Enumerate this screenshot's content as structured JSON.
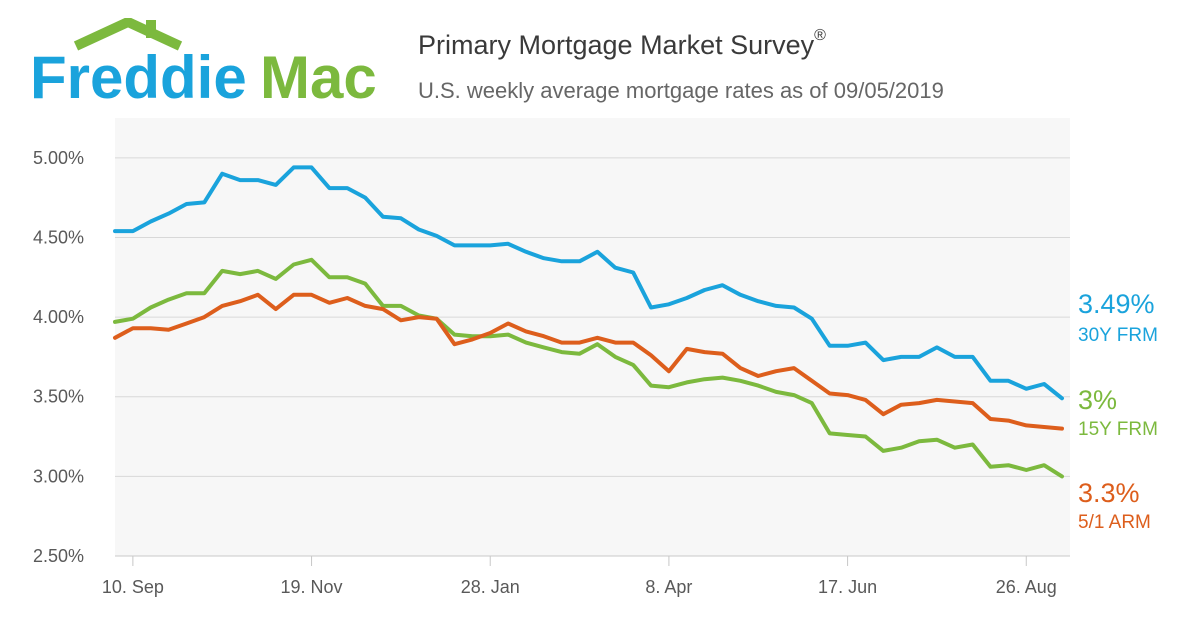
{
  "brand": {
    "name": "FreddieMac",
    "word1": "Freddie",
    "word2": "Mac"
  },
  "header": {
    "title": "Primary Mortgage Market Survey",
    "title_mark": "®",
    "subtitle": "U.S. weekly average mortgage rates as of 09/05/2019"
  },
  "colors": {
    "blue": "#1aa3dc",
    "green": "#7cb93e",
    "orange": "#dd5e1c",
    "plot_bg": "#f7f7f7",
    "grid": "#d8d8d8"
  },
  "chart_data": {
    "type": "line",
    "title": "",
    "xlabel": "",
    "ylabel": "",
    "ylim": [
      2.5,
      5.25
    ],
    "yticks": [
      2.5,
      3.0,
      3.5,
      4.0,
      4.5,
      5.0
    ],
    "ytick_labels": [
      "2.50%",
      "3.00%",
      "3.50%",
      "4.00%",
      "4.50%",
      "5.00%"
    ],
    "xtick_labels": [
      "10. Sep",
      "19. Nov",
      "28. Jan",
      "8. Apr",
      "17. Jun",
      "26. Aug"
    ],
    "xtick_index": [
      1,
      11,
      21,
      31,
      41,
      51
    ],
    "grid": true,
    "legend": "right-end labels",
    "series": [
      {
        "name": "30Y FRM",
        "end_label": "3.49%",
        "color": "#1aa3dc",
        "values": [
          4.54,
          4.54,
          4.6,
          4.65,
          4.71,
          4.72,
          4.9,
          4.86,
          4.86,
          4.83,
          4.94,
          4.94,
          4.81,
          4.81,
          4.75,
          4.63,
          4.62,
          4.55,
          4.51,
          4.45,
          4.45,
          4.45,
          4.46,
          4.41,
          4.37,
          4.35,
          4.35,
          4.41,
          4.31,
          4.28,
          4.06,
          4.08,
          4.12,
          4.17,
          4.2,
          4.14,
          4.1,
          4.07,
          4.06,
          3.99,
          3.82,
          3.82,
          3.84,
          3.73,
          3.75,
          3.75,
          3.81,
          3.75,
          3.75,
          3.6,
          3.6,
          3.55,
          3.58,
          3.49
        ]
      },
      {
        "name": "15Y FRM",
        "end_label": "3%",
        "color": "#7cb93e",
        "values": [
          3.97,
          3.99,
          4.06,
          4.11,
          4.15,
          4.15,
          4.29,
          4.27,
          4.29,
          4.24,
          4.33,
          4.36,
          4.25,
          4.25,
          4.21,
          4.07,
          4.07,
          4.01,
          3.99,
          3.89,
          3.88,
          3.88,
          3.89,
          3.84,
          3.81,
          3.78,
          3.77,
          3.83,
          3.75,
          3.7,
          3.57,
          3.56,
          3.59,
          3.61,
          3.62,
          3.6,
          3.57,
          3.53,
          3.51,
          3.46,
          3.27,
          3.26,
          3.25,
          3.16,
          3.18,
          3.22,
          3.23,
          3.18,
          3.2,
          3.06,
          3.07,
          3.04,
          3.07,
          3.0
        ]
      },
      {
        "name": "5/1 ARM",
        "end_label": "3.3%",
        "color": "#dd5e1c",
        "values": [
          3.87,
          3.93,
          3.93,
          3.92,
          3.96,
          4.0,
          4.07,
          4.1,
          4.14,
          4.05,
          4.14,
          4.14,
          4.09,
          4.12,
          4.07,
          4.05,
          3.98,
          4.0,
          3.99,
          3.83,
          3.86,
          3.9,
          3.96,
          3.91,
          3.88,
          3.84,
          3.84,
          3.87,
          3.84,
          3.84,
          3.76,
          3.66,
          3.8,
          3.78,
          3.77,
          3.68,
          3.63,
          3.66,
          3.68,
          3.6,
          3.52,
          3.51,
          3.48,
          3.39,
          3.45,
          3.46,
          3.48,
          3.47,
          3.46,
          3.36,
          3.35,
          3.32,
          3.31,
          3.3
        ]
      }
    ]
  }
}
